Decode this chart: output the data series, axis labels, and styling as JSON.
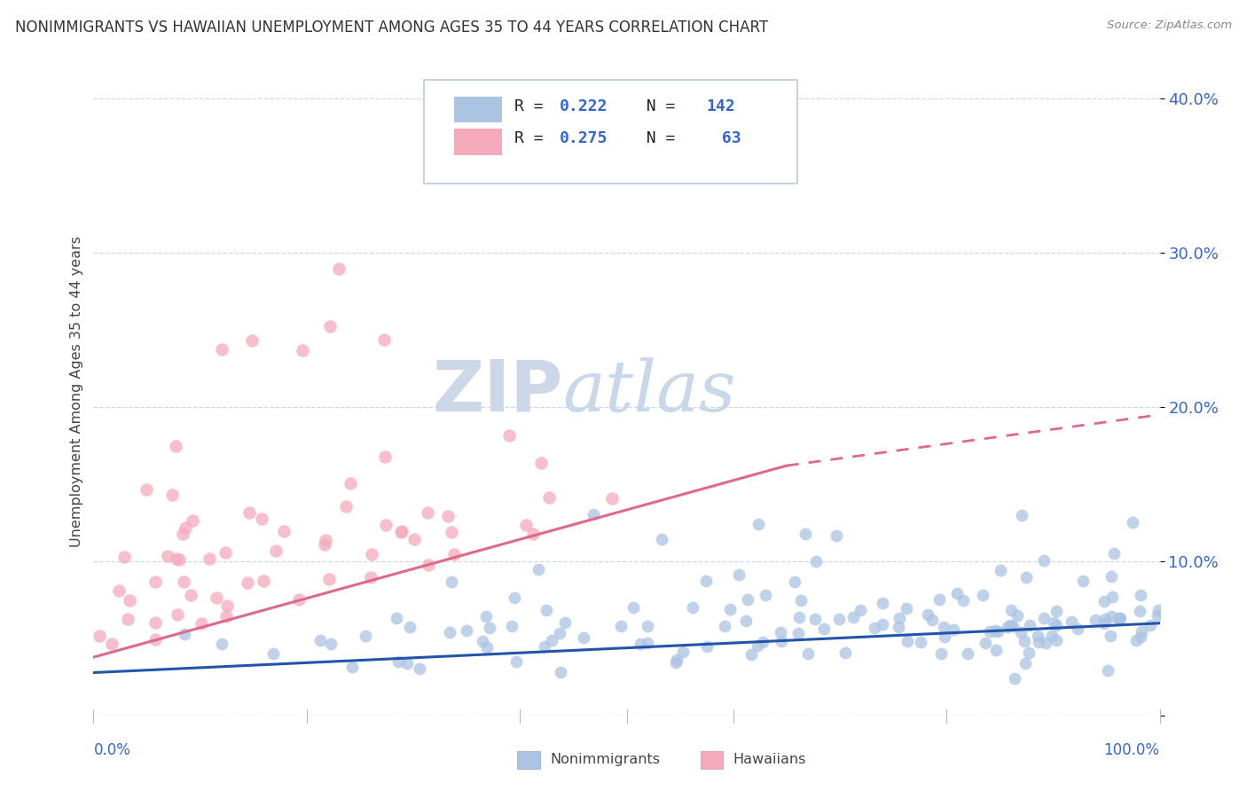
{
  "title": "NONIMMIGRANTS VS HAWAIIAN UNEMPLOYMENT AMONG AGES 35 TO 44 YEARS CORRELATION CHART",
  "source": "Source: ZipAtlas.com",
  "ylabel": "Unemployment Among Ages 35 to 44 years",
  "blue_color": "#aac4e2",
  "pink_color": "#f5aabb",
  "blue_line_color": "#2255aa",
  "pink_line_color": "#e06888",
  "xlim": [
    0,
    1
  ],
  "ylim": [
    0,
    0.42
  ],
  "background_color": "#ffffff",
  "grid_color": "#c8d8ea",
  "watermark_zip_color": "#ccd8e8",
  "watermark_atlas_color": "#c8d8e8",
  "blue_N": 142,
  "pink_N": 63,
  "blue_trend_x": [
    0.0,
    1.0
  ],
  "blue_trend_y": [
    0.028,
    0.06
  ],
  "pink_trend_x": [
    0.0,
    0.65
  ],
  "pink_trend_y": [
    0.038,
    0.162
  ],
  "pink_dashed_trend_x": [
    0.65,
    1.0
  ],
  "pink_dashed_trend_y": [
    0.162,
    0.195
  ],
  "ytick_vals": [
    0.0,
    0.1,
    0.2,
    0.3,
    0.4
  ],
  "ytick_labels": [
    "",
    "10.0%",
    "20.0%",
    "30.0%",
    "40.0%"
  ],
  "legend_text_black": [
    "R = ",
    "R = "
  ],
  "legend_r_vals": [
    "0.222",
    "0.275"
  ],
  "legend_n_text": [
    "N = ",
    "N = "
  ],
  "legend_n_vals": [
    "142",
    " 63"
  ],
  "legend_blue_color": "#3366cc",
  "seed": 12345
}
